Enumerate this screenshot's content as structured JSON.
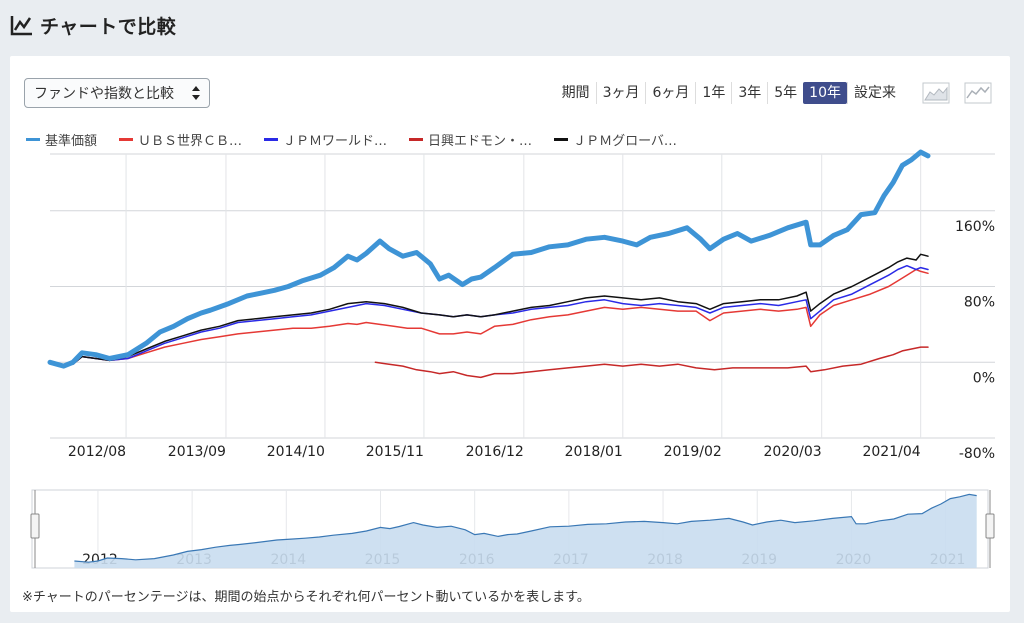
{
  "header": {
    "title": "チャートで比較"
  },
  "controls": {
    "compare_select": "ファンドや指数と比較",
    "periods": [
      {
        "label": "期間",
        "active": false
      },
      {
        "label": "3ヶ月",
        "active": false
      },
      {
        "label": "6ヶ月",
        "active": false
      },
      {
        "label": "1年",
        "active": false
      },
      {
        "label": "3年",
        "active": false
      },
      {
        "label": "5年",
        "active": false
      },
      {
        "label": "10年",
        "active": true
      },
      {
        "label": "設定来",
        "active": false
      }
    ]
  },
  "colors": {
    "accent": "#3f4d8c",
    "base": "#3e94d6",
    "ubs": "#e53935",
    "jpm_world": "#2a2ae6",
    "nikko": "#c62828",
    "jpm_global": "#111111"
  },
  "chart_data": {
    "type": "line",
    "ylim": [
      -80,
      220
    ],
    "y_ticks": [
      -80,
      0,
      80,
      160
    ],
    "y_tick_labels": [
      "-80%",
      "0%",
      "80%",
      "160%"
    ],
    "x_range": [
      2011.75,
      2021.33
    ],
    "x_ticks": [
      2012.58,
      2013.67,
      2014.75,
      2015.83,
      2016.92,
      2018.0,
      2019.08,
      2020.17,
      2021.25
    ],
    "x_tick_labels": [
      "2012/08",
      "2013/09",
      "2014/10",
      "2015/11",
      "2016/12",
      "2018/01",
      "2019/02",
      "2020/03",
      "2021/04"
    ],
    "series": [
      {
        "name": "基準価額",
        "color": "#3e94d6",
        "width": 5,
        "x": [
          2011.75,
          2011.9,
          2012.0,
          2012.1,
          2012.25,
          2012.4,
          2012.6,
          2012.8,
          2012.95,
          2013.1,
          2013.25,
          2013.4,
          2013.5,
          2013.7,
          2013.9,
          2014.05,
          2014.2,
          2014.35,
          2014.5,
          2014.7,
          2014.85,
          2015.0,
          2015.1,
          2015.2,
          2015.35,
          2015.45,
          2015.6,
          2015.75,
          2015.9,
          2016.0,
          2016.1,
          2016.25,
          2016.35,
          2016.45,
          2016.6,
          2016.8,
          2017.0,
          2017.2,
          2017.4,
          2017.6,
          2017.8,
          2018.0,
          2018.15,
          2018.3,
          2018.5,
          2018.7,
          2018.85,
          2018.95,
          2019.1,
          2019.25,
          2019.4,
          2019.6,
          2019.8,
          2020.0,
          2020.05,
          2020.15,
          2020.3,
          2020.45,
          2020.6,
          2020.75,
          2020.85,
          2020.95,
          2021.05,
          2021.15,
          2021.25,
          2021.33
        ],
        "y": [
          0,
          -4,
          0,
          10,
          8,
          4,
          8,
          20,
          32,
          38,
          46,
          52,
          55,
          62,
          70,
          73,
          76,
          80,
          86,
          92,
          100,
          112,
          108,
          115,
          128,
          120,
          112,
          116,
          104,
          88,
          92,
          82,
          88,
          90,
          100,
          114,
          116,
          122,
          124,
          130,
          132,
          128,
          124,
          132,
          136,
          142,
          130,
          120,
          130,
          136,
          128,
          134,
          142,
          148,
          124,
          124,
          134,
          140,
          156,
          158,
          176,
          190,
          208,
          214,
          222,
          218
        ]
      },
      {
        "name": "ＵＢＳ世界ＣＢ…",
        "color": "#e53935",
        "width": 1.5,
        "x": [
          2011.75,
          2011.9,
          2012.0,
          2012.1,
          2012.25,
          2012.4,
          2012.6,
          2012.8,
          2013.0,
          2013.2,
          2013.4,
          2013.6,
          2013.8,
          2014.0,
          2014.2,
          2014.4,
          2014.6,
          2014.8,
          2015.0,
          2015.1,
          2015.2,
          2015.35,
          2015.5,
          2015.65,
          2015.8,
          2016.0,
          2016.15,
          2016.3,
          2016.45,
          2016.6,
          2016.8,
          2017.0,
          2017.2,
          2017.4,
          2017.6,
          2017.8,
          2018.0,
          2018.2,
          2018.4,
          2018.6,
          2018.8,
          2018.95,
          2019.1,
          2019.3,
          2019.5,
          2019.7,
          2019.9,
          2020.0,
          2020.05,
          2020.15,
          2020.3,
          2020.5,
          2020.7,
          2020.9,
          2021.0,
          2021.1,
          2021.2,
          2021.25,
          2021.33
        ],
        "y": [
          0,
          -4,
          -2,
          6,
          4,
          2,
          4,
          10,
          16,
          20,
          24,
          27,
          30,
          32,
          34,
          36,
          36,
          38,
          41,
          40,
          42,
          40,
          38,
          36,
          36,
          30,
          30,
          32,
          30,
          38,
          40,
          45,
          48,
          50,
          54,
          58,
          56,
          58,
          56,
          54,
          54,
          44,
          52,
          54,
          56,
          54,
          56,
          58,
          38,
          50,
          60,
          66,
          72,
          80,
          86,
          92,
          98,
          96,
          94
        ]
      },
      {
        "name": "ＪＰＭワールド…",
        "color": "#2a2ae6",
        "width": 1.5,
        "x": [
          2011.75,
          2011.9,
          2012.0,
          2012.1,
          2012.25,
          2012.4,
          2012.6,
          2012.8,
          2013.0,
          2013.2,
          2013.4,
          2013.6,
          2013.8,
          2014.0,
          2014.2,
          2014.4,
          2014.6,
          2014.8,
          2015.0,
          2015.2,
          2015.4,
          2015.6,
          2015.8,
          2016.0,
          2016.15,
          2016.3,
          2016.45,
          2016.6,
          2016.8,
          2017.0,
          2017.2,
          2017.4,
          2017.6,
          2017.8,
          2018.0,
          2018.2,
          2018.4,
          2018.6,
          2018.8,
          2018.95,
          2019.1,
          2019.3,
          2019.5,
          2019.7,
          2019.9,
          2020.0,
          2020.05,
          2020.15,
          2020.3,
          2020.5,
          2020.7,
          2020.9,
          2021.0,
          2021.1,
          2021.2,
          2021.25,
          2021.33
        ],
        "y": [
          0,
          -4,
          -2,
          6,
          4,
          2,
          4,
          12,
          20,
          26,
          32,
          36,
          42,
          44,
          46,
          48,
          50,
          54,
          58,
          62,
          60,
          56,
          52,
          50,
          48,
          50,
          48,
          50,
          52,
          56,
          58,
          60,
          64,
          66,
          62,
          60,
          62,
          60,
          58,
          52,
          58,
          60,
          62,
          60,
          64,
          66,
          46,
          54,
          66,
          72,
          82,
          92,
          98,
          102,
          98,
          100,
          98
        ]
      },
      {
        "name": "日興エドモン・…",
        "color": "#c62828",
        "width": 1.5,
        "x": [
          2015.3,
          2015.45,
          2015.6,
          2015.75,
          2015.9,
          2016.0,
          2016.15,
          2016.3,
          2016.45,
          2016.6,
          2016.8,
          2017.0,
          2017.2,
          2017.4,
          2017.6,
          2017.8,
          2018.0,
          2018.2,
          2018.4,
          2018.6,
          2018.8,
          2019.0,
          2019.2,
          2019.4,
          2019.6,
          2019.8,
          2020.0,
          2020.05,
          2020.2,
          2020.4,
          2020.6,
          2020.8,
          2020.95,
          2021.05,
          2021.15,
          2021.25,
          2021.33
        ],
        "y": [
          0,
          -2,
          -4,
          -8,
          -10,
          -12,
          -10,
          -14,
          -16,
          -12,
          -12,
          -10,
          -8,
          -6,
          -4,
          -2,
          -4,
          -2,
          -4,
          -2,
          -6,
          -8,
          -6,
          -6,
          -6,
          -6,
          -4,
          -10,
          -8,
          -4,
          -2,
          4,
          8,
          12,
          14,
          16,
          16
        ]
      },
      {
        "name": "ＪＰＭグローバ…",
        "color": "#111111",
        "width": 1.5,
        "x": [
          2011.75,
          2011.9,
          2012.0,
          2012.1,
          2012.25,
          2012.4,
          2012.6,
          2012.8,
          2013.0,
          2013.2,
          2013.4,
          2013.6,
          2013.8,
          2014.0,
          2014.2,
          2014.4,
          2014.6,
          2014.8,
          2015.0,
          2015.2,
          2015.4,
          2015.6,
          2015.8,
          2016.0,
          2016.15,
          2016.3,
          2016.45,
          2016.6,
          2016.8,
          2017.0,
          2017.2,
          2017.4,
          2017.6,
          2017.8,
          2018.0,
          2018.2,
          2018.4,
          2018.6,
          2018.8,
          2018.95,
          2019.1,
          2019.3,
          2019.5,
          2019.7,
          2019.9,
          2020.0,
          2020.05,
          2020.15,
          2020.3,
          2020.5,
          2020.7,
          2020.9,
          2021.0,
          2021.1,
          2021.2,
          2021.25,
          2021.33
        ],
        "y": [
          0,
          -4,
          -2,
          6,
          4,
          2,
          6,
          14,
          22,
          28,
          34,
          38,
          44,
          46,
          48,
          50,
          52,
          56,
          62,
          64,
          62,
          58,
          52,
          50,
          48,
          50,
          48,
          50,
          54,
          58,
          60,
          64,
          68,
          70,
          68,
          66,
          68,
          64,
          62,
          56,
          62,
          64,
          66,
          66,
          70,
          74,
          54,
          62,
          72,
          80,
          90,
          100,
          106,
          110,
          108,
          114,
          112
        ]
      }
    ]
  },
  "navigator": {
    "year_labels": [
      "2012",
      "2013",
      "2014",
      "2015",
      "2016",
      "2017",
      "2018",
      "2019",
      "2020",
      "2021"
    ],
    "year_values": [
      2012,
      2013,
      2014,
      2015,
      2016,
      2017,
      2018,
      2019,
      2020,
      2021
    ],
    "x_range": [
      2011.3,
      2021.45
    ]
  },
  "footnote": "※チャートのパーセンテージは、期間の始点からそれぞれ何パーセント動いているかを表します。"
}
